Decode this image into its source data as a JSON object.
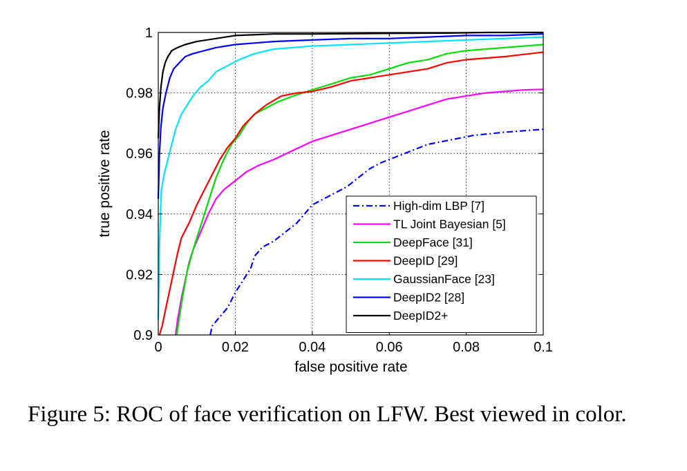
{
  "caption": "Figure 5: ROC of face verification on LFW. Best viewed in color.",
  "chart_data": {
    "type": "line",
    "title": "",
    "xlabel": "false positive rate",
    "ylabel": "true positive rate",
    "xlim": [
      0,
      0.1
    ],
    "ylim": [
      0.9,
      1.0
    ],
    "xticks": [
      0,
      0.02,
      0.04,
      0.06,
      0.08,
      0.1
    ],
    "xtick_labels": [
      "0",
      "0.02",
      "0.04",
      "0.06",
      "0.08",
      "0.1"
    ],
    "yticks": [
      0.9,
      0.92,
      0.94,
      0.96,
      0.98,
      1.0
    ],
    "ytick_labels": [
      "0.9",
      "0.92",
      "0.94",
      "0.96",
      "0.98",
      "1"
    ],
    "grid": true,
    "legend_position": "bottom-right",
    "series": [
      {
        "name": "High-dim LBP [7]",
        "color": "#0000ff",
        "dash": "dash-dot",
        "points": [
          [
            0.0135,
            0.9
          ],
          [
            0.014,
            0.903
          ],
          [
            0.016,
            0.906
          ],
          [
            0.018,
            0.909
          ],
          [
            0.02,
            0.914
          ],
          [
            0.022,
            0.918
          ],
          [
            0.024,
            0.922
          ],
          [
            0.025,
            0.926
          ],
          [
            0.027,
            0.929
          ],
          [
            0.03,
            0.931
          ],
          [
            0.033,
            0.934
          ],
          [
            0.036,
            0.937
          ],
          [
            0.038,
            0.94
          ],
          [
            0.04,
            0.943
          ],
          [
            0.043,
            0.945
          ],
          [
            0.046,
            0.947
          ],
          [
            0.049,
            0.949
          ],
          [
            0.052,
            0.952
          ],
          [
            0.055,
            0.955
          ],
          [
            0.058,
            0.957
          ],
          [
            0.062,
            0.959
          ],
          [
            0.066,
            0.961
          ],
          [
            0.07,
            0.963
          ],
          [
            0.074,
            0.964
          ],
          [
            0.078,
            0.965
          ],
          [
            0.082,
            0.966
          ],
          [
            0.086,
            0.9665
          ],
          [
            0.09,
            0.967
          ],
          [
            0.095,
            0.9675
          ],
          [
            0.1,
            0.968
          ]
        ]
      },
      {
        "name": "TL Joint Bayesian   [5]",
        "color": "#ff00ff",
        "dash": "solid",
        "points": [
          [
            0.0045,
            0.9
          ],
          [
            0.005,
            0.905
          ],
          [
            0.006,
            0.912
          ],
          [
            0.007,
            0.918
          ],
          [
            0.008,
            0.924
          ],
          [
            0.009,
            0.928
          ],
          [
            0.01,
            0.931
          ],
          [
            0.011,
            0.934
          ],
          [
            0.012,
            0.937
          ],
          [
            0.013,
            0.94
          ],
          [
            0.015,
            0.945
          ],
          [
            0.017,
            0.948
          ],
          [
            0.02,
            0.951
          ],
          [
            0.023,
            0.954
          ],
          [
            0.026,
            0.956
          ],
          [
            0.03,
            0.958
          ],
          [
            0.035,
            0.961
          ],
          [
            0.04,
            0.964
          ],
          [
            0.045,
            0.966
          ],
          [
            0.05,
            0.968
          ],
          [
            0.055,
            0.97
          ],
          [
            0.06,
            0.972
          ],
          [
            0.065,
            0.974
          ],
          [
            0.07,
            0.976
          ],
          [
            0.075,
            0.978
          ],
          [
            0.08,
            0.979
          ],
          [
            0.085,
            0.98
          ],
          [
            0.09,
            0.9805
          ],
          [
            0.095,
            0.981
          ],
          [
            0.1,
            0.9812
          ]
        ]
      },
      {
        "name": "DeepFace [31]",
        "color": "#00dd00",
        "dash": "solid",
        "points": [
          [
            0.0048,
            0.9
          ],
          [
            0.0055,
            0.906
          ],
          [
            0.0065,
            0.914
          ],
          [
            0.0075,
            0.921
          ],
          [
            0.009,
            0.928
          ],
          [
            0.0105,
            0.934
          ],
          [
            0.012,
            0.94
          ],
          [
            0.0135,
            0.946
          ],
          [
            0.015,
            0.952
          ],
          [
            0.017,
            0.958
          ],
          [
            0.019,
            0.963
          ],
          [
            0.021,
            0.966
          ],
          [
            0.023,
            0.97
          ],
          [
            0.025,
            0.973
          ],
          [
            0.028,
            0.975
          ],
          [
            0.031,
            0.977
          ],
          [
            0.035,
            0.979
          ],
          [
            0.04,
            0.981
          ],
          [
            0.045,
            0.983
          ],
          [
            0.05,
            0.985
          ],
          [
            0.055,
            0.986
          ],
          [
            0.06,
            0.988
          ],
          [
            0.065,
            0.99
          ],
          [
            0.07,
            0.991
          ],
          [
            0.075,
            0.993
          ],
          [
            0.08,
            0.994
          ],
          [
            0.085,
            0.9945
          ],
          [
            0.09,
            0.995
          ],
          [
            0.095,
            0.9955
          ],
          [
            0.1,
            0.996
          ]
        ]
      },
      {
        "name": "DeepID [29]",
        "color": "#ff0000",
        "dash": "solid",
        "points": [
          [
            0.0003,
            0.9
          ],
          [
            0.001,
            0.903
          ],
          [
            0.002,
            0.909
          ],
          [
            0.003,
            0.915
          ],
          [
            0.004,
            0.921
          ],
          [
            0.005,
            0.927
          ],
          [
            0.006,
            0.932
          ],
          [
            0.008,
            0.937
          ],
          [
            0.01,
            0.943
          ],
          [
            0.012,
            0.948
          ],
          [
            0.014,
            0.953
          ],
          [
            0.016,
            0.958
          ],
          [
            0.018,
            0.962
          ],
          [
            0.02,
            0.965
          ],
          [
            0.022,
            0.969
          ],
          [
            0.025,
            0.973
          ],
          [
            0.028,
            0.976
          ],
          [
            0.032,
            0.979
          ],
          [
            0.036,
            0.98
          ],
          [
            0.04,
            0.9805
          ],
          [
            0.045,
            0.982
          ],
          [
            0.05,
            0.984
          ],
          [
            0.055,
            0.985
          ],
          [
            0.06,
            0.986
          ],
          [
            0.065,
            0.987
          ],
          [
            0.07,
            0.988
          ],
          [
            0.075,
            0.99
          ],
          [
            0.08,
            0.991
          ],
          [
            0.09,
            0.992
          ],
          [
            0.1,
            0.9935
          ]
        ]
      },
      {
        "name": "GaussianFace [23]",
        "color": "#00e5ff",
        "dash": "solid",
        "points": [
          [
            0.0,
            0.905
          ],
          [
            0.0003,
            0.93
          ],
          [
            0.0008,
            0.948
          ],
          [
            0.0015,
            0.953
          ],
          [
            0.0025,
            0.958
          ],
          [
            0.0035,
            0.963
          ],
          [
            0.0045,
            0.968
          ],
          [
            0.006,
            0.973
          ],
          [
            0.0075,
            0.976
          ],
          [
            0.009,
            0.979
          ],
          [
            0.011,
            0.982
          ],
          [
            0.013,
            0.984
          ],
          [
            0.015,
            0.987
          ],
          [
            0.018,
            0.989
          ],
          [
            0.021,
            0.991
          ],
          [
            0.025,
            0.993
          ],
          [
            0.03,
            0.9945
          ],
          [
            0.035,
            0.995
          ],
          [
            0.04,
            0.9955
          ],
          [
            0.05,
            0.996
          ],
          [
            0.06,
            0.9965
          ],
          [
            0.07,
            0.997
          ],
          [
            0.08,
            0.9975
          ],
          [
            0.09,
            0.998
          ],
          [
            0.1,
            0.9985
          ]
        ]
      },
      {
        "name": "DeepID2 [28]",
        "color": "#0000ff",
        "dash": "solid",
        "points": [
          [
            0.0,
            0.945
          ],
          [
            0.0003,
            0.96
          ],
          [
            0.0007,
            0.969
          ],
          [
            0.0012,
            0.975
          ],
          [
            0.002,
            0.98
          ],
          [
            0.003,
            0.985
          ],
          [
            0.004,
            0.988
          ],
          [
            0.0055,
            0.99
          ],
          [
            0.007,
            0.992
          ],
          [
            0.009,
            0.993
          ],
          [
            0.012,
            0.994
          ],
          [
            0.015,
            0.995
          ],
          [
            0.02,
            0.996
          ],
          [
            0.025,
            0.9965
          ],
          [
            0.03,
            0.997
          ],
          [
            0.04,
            0.9975
          ],
          [
            0.05,
            0.998
          ],
          [
            0.06,
            0.998
          ],
          [
            0.07,
            0.9985
          ],
          [
            0.08,
            0.999
          ],
          [
            0.09,
            0.999
          ],
          [
            0.1,
            0.9995
          ]
        ]
      },
      {
        "name": "DeepID2+",
        "color": "#000000",
        "dash": "solid",
        "points": [
          [
            0.0,
            0.965
          ],
          [
            0.0003,
            0.975
          ],
          [
            0.0007,
            0.982
          ],
          [
            0.0012,
            0.987
          ],
          [
            0.0018,
            0.99
          ],
          [
            0.0025,
            0.992
          ],
          [
            0.0035,
            0.994
          ],
          [
            0.005,
            0.995
          ],
          [
            0.007,
            0.996
          ],
          [
            0.01,
            0.997
          ],
          [
            0.015,
            0.998
          ],
          [
            0.02,
            0.999
          ],
          [
            0.03,
            0.9995
          ],
          [
            0.04,
            0.9995
          ],
          [
            0.05,
            0.9996
          ],
          [
            0.06,
            0.9997
          ],
          [
            0.075,
            0.9998
          ],
          [
            0.085,
            1.0
          ],
          [
            0.1,
            1.0
          ]
        ]
      }
    ]
  }
}
